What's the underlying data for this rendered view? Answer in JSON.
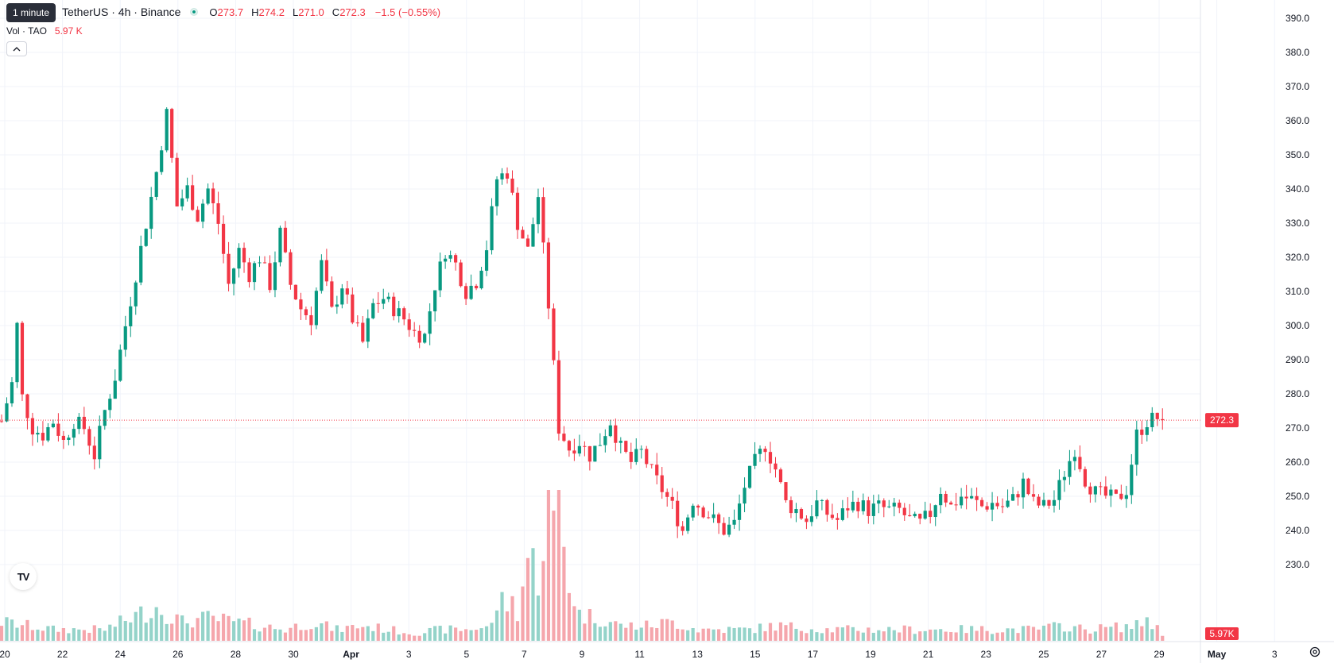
{
  "legend": {
    "symbol": "TetherUS · 4h · Binance",
    "ohlc": [
      {
        "k": "O",
        "v": "273.7"
      },
      {
        "k": "H",
        "v": "274.2"
      },
      {
        "k": "L",
        "v": "271.0"
      },
      {
        "k": "C",
        "v": "272.3"
      }
    ],
    "change": "−1.5 (−0.55%)",
    "vol_title": "Vol · TAO",
    "vol_value": "5.97 K"
  },
  "tooltip": "1 minute",
  "colors": {
    "up": "#089981",
    "down": "#f23645",
    "up_vol": "#94d3c9",
    "down_vol": "#f5a6ac",
    "grid": "#f0f3fa",
    "text": "#131722"
  },
  "icons": {
    "status": "status-dot-icon",
    "collapse": "chevron-up-icon",
    "logo": "tradingview-logo-icon",
    "settings": "gear-icon"
  },
  "chart_data": {
    "type": "candlestick",
    "interval": "4h",
    "price_axis": {
      "ticks": [
        "390.0",
        "380.0",
        "370.0",
        "360.0",
        "350.0",
        "340.0",
        "330.0",
        "320.0",
        "310.0",
        "300.0",
        "290.0",
        "280.0",
        "270.0",
        "260.0",
        "250.0",
        "240.0",
        "230.0"
      ],
      "last_price": "272.3",
      "last_volume": "5.97K"
    },
    "time_axis": {
      "ticks": [
        "20",
        "22",
        "24",
        "26",
        "28",
        "30",
        "Apr",
        "3",
        "5",
        "7",
        "9",
        "11",
        "13",
        "15",
        "17",
        "19",
        "21",
        "23",
        "25",
        "27",
        "29",
        "May",
        "3"
      ]
    },
    "close_path": [
      [
        0,
        272
      ],
      [
        2,
        283
      ],
      [
        3,
        300
      ],
      [
        4,
        279
      ],
      [
        6,
        270
      ],
      [
        8,
        268
      ],
      [
        10,
        272
      ],
      [
        12,
        266
      ],
      [
        14,
        272
      ],
      [
        16,
        270
      ],
      [
        18,
        262
      ],
      [
        20,
        275
      ],
      [
        22,
        285
      ],
      [
        24,
        300
      ],
      [
        26,
        315
      ],
      [
        28,
        330
      ],
      [
        30,
        345
      ],
      [
        32,
        362
      ],
      [
        34,
        335
      ],
      [
        36,
        340
      ],
      [
        38,
        332
      ],
      [
        40,
        340
      ],
      [
        42,
        330
      ],
      [
        44,
        312
      ],
      [
        46,
        322
      ],
      [
        48,
        315
      ],
      [
        50,
        320
      ],
      [
        52,
        312
      ],
      [
        54,
        327
      ],
      [
        56,
        312
      ],
      [
        58,
        305
      ],
      [
        60,
        302
      ],
      [
        62,
        318
      ],
      [
        64,
        304
      ],
      [
        66,
        312
      ],
      [
        68,
        302
      ],
      [
        70,
        295
      ],
      [
        72,
        306
      ],
      [
        74,
        308
      ],
      [
        76,
        305
      ],
      [
        78,
        302
      ],
      [
        80,
        298
      ],
      [
        82,
        297
      ],
      [
        84,
        312
      ],
      [
        86,
        322
      ],
      [
        88,
        318
      ],
      [
        90,
        310
      ],
      [
        92,
        313
      ],
      [
        94,
        323
      ],
      [
        96,
        343
      ],
      [
        98,
        345
      ],
      [
        100,
        330
      ],
      [
        102,
        322
      ],
      [
        104,
        338
      ],
      [
        106,
        306
      ],
      [
        108,
        270
      ],
      [
        110,
        264
      ],
      [
        112,
        266
      ],
      [
        114,
        262
      ],
      [
        116,
        266
      ],
      [
        118,
        272
      ],
      [
        120,
        264
      ],
      [
        122,
        260
      ],
      [
        124,
        263
      ],
      [
        126,
        257
      ],
      [
        128,
        252
      ],
      [
        130,
        247
      ],
      [
        132,
        240
      ],
      [
        134,
        249
      ],
      [
        136,
        246
      ],
      [
        138,
        243
      ],
      [
        140,
        240
      ],
      [
        142,
        242
      ],
      [
        144,
        253
      ],
      [
        146,
        260
      ],
      [
        148,
        265
      ],
      [
        150,
        258
      ],
      [
        152,
        248
      ],
      [
        154,
        246
      ],
      [
        156,
        243
      ],
      [
        158,
        248
      ],
      [
        160,
        245
      ],
      [
        162,
        243
      ],
      [
        164,
        247
      ],
      [
        166,
        248
      ],
      [
        168,
        246
      ],
      [
        170,
        247
      ],
      [
        172,
        246
      ],
      [
        174,
        246
      ],
      [
        176,
        243
      ],
      [
        178,
        242
      ],
      [
        180,
        245
      ],
      [
        182,
        252
      ],
      [
        184,
        247
      ],
      [
        186,
        250
      ],
      [
        188,
        249
      ],
      [
        190,
        247
      ],
      [
        192,
        248
      ],
      [
        194,
        247
      ],
      [
        196,
        249
      ],
      [
        198,
        254
      ],
      [
        200,
        248
      ],
      [
        202,
        247
      ],
      [
        204,
        249
      ],
      [
        206,
        257
      ],
      [
        208,
        264
      ],
      [
        210,
        255
      ],
      [
        212,
        251
      ],
      [
        214,
        250
      ],
      [
        216,
        249
      ],
      [
        218,
        252
      ],
      [
        220,
        268
      ],
      [
        222,
        272
      ],
      [
        224,
        273
      ],
      [
        225,
        272.3
      ]
    ],
    "volume_profile": [
      [
        0,
        5
      ],
      [
        10,
        3
      ],
      [
        20,
        3
      ],
      [
        25,
        6
      ],
      [
        30,
        9
      ],
      [
        35,
        5
      ],
      [
        40,
        6
      ],
      [
        50,
        4
      ],
      [
        55,
        3
      ],
      [
        60,
        5
      ],
      [
        65,
        3
      ],
      [
        70,
        4
      ],
      [
        75,
        3
      ],
      [
        80,
        2
      ],
      [
        85,
        3
      ],
      [
        90,
        3
      ],
      [
        95,
        4
      ],
      [
        96,
        10
      ],
      [
        99,
        10
      ],
      [
        100,
        8
      ],
      [
        102,
        22
      ],
      [
        104,
        18
      ],
      [
        106,
        36
      ],
      [
        107,
        28
      ],
      [
        108,
        40
      ],
      [
        109,
        26
      ],
      [
        110,
        16
      ],
      [
        112,
        7
      ],
      [
        116,
        6
      ],
      [
        120,
        4
      ],
      [
        125,
        4
      ],
      [
        130,
        5
      ],
      [
        135,
        3
      ],
      [
        140,
        3
      ],
      [
        145,
        3
      ],
      [
        150,
        4
      ],
      [
        160,
        3
      ],
      [
        170,
        3
      ],
      [
        180,
        3
      ],
      [
        190,
        3
      ],
      [
        200,
        3
      ],
      [
        206,
        4
      ],
      [
        210,
        3
      ],
      [
        220,
        4
      ],
      [
        222,
        6
      ],
      [
        225,
        2
      ]
    ],
    "volume_max": 40,
    "ylim": [
      228,
      393
    ]
  }
}
